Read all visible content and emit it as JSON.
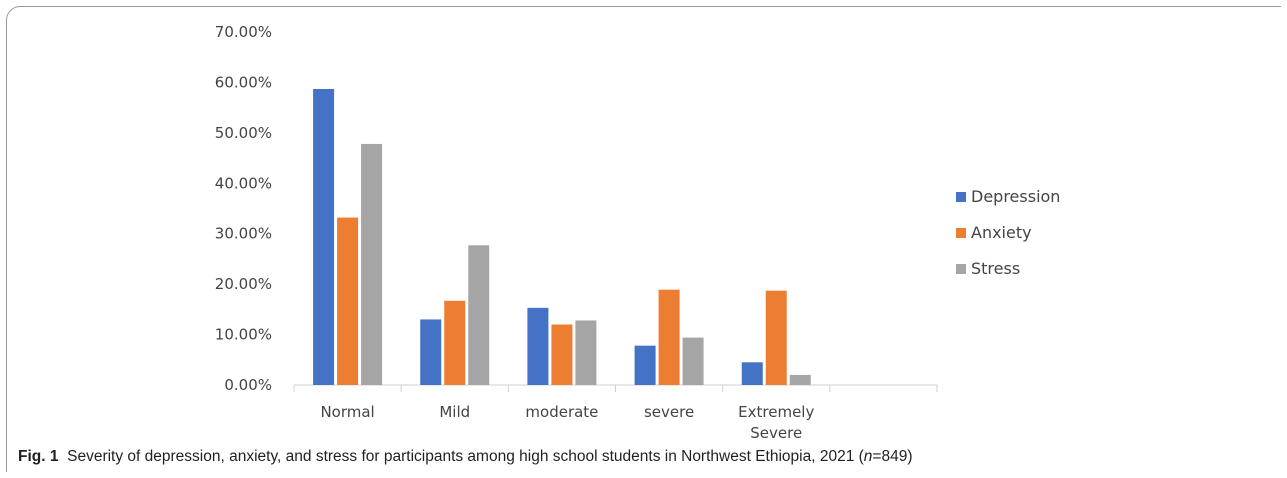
{
  "chart_data": {
    "type": "bar",
    "categories": [
      "Normal",
      "Mild",
      "moderate",
      "severe",
      "Extremely Severe"
    ],
    "category_lines": [
      [
        "Normal"
      ],
      [
        "Mild"
      ],
      [
        "moderate"
      ],
      [
        "severe"
      ],
      [
        "Extremely",
        "Severe"
      ]
    ],
    "series": [
      {
        "name": "Depression",
        "color": "#4472C4",
        "values": [
          58.7,
          13.0,
          15.3,
          7.8,
          4.5
        ]
      },
      {
        "name": "Anxiety",
        "color": "#ED7D31",
        "values": [
          33.2,
          16.7,
          12.0,
          18.9,
          18.7
        ]
      },
      {
        "name": "Stress",
        "color": "#A5A5A5",
        "values": [
          47.8,
          27.7,
          12.8,
          9.4,
          2.0
        ]
      }
    ],
    "ylim": [
      0,
      70
    ],
    "yticks": [
      "0.00%",
      "10.00%",
      "20.00%",
      "30.00%",
      "40.00%",
      "50.00%",
      "60.00%",
      "70.00%"
    ],
    "grid": false,
    "legend_position": "right"
  },
  "caption": {
    "label": "Fig. 1",
    "text_before_n": "Severity of depression, anxiety, and stress for participants among high school students in Northwest Ethiopia, 2021 (",
    "n_symbol": "n",
    "text_after_n": "=849)"
  }
}
